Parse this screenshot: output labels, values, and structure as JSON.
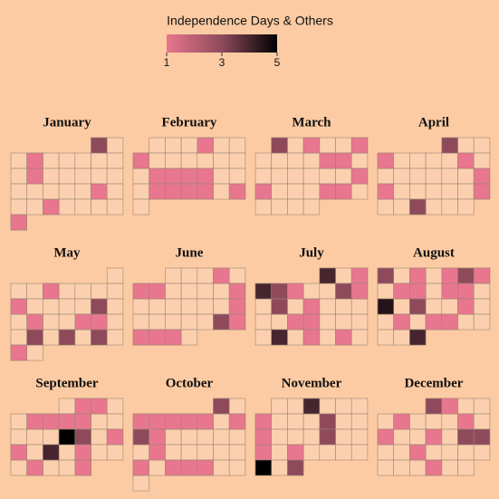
{
  "chart_data": {
    "type": "calendar_heatmap",
    "colorbar": {
      "title": "Independence Days & Others",
      "clim": [
        1,
        5
      ],
      "ticks": [
        1,
        3,
        5
      ],
      "colorscale": [
        "#e8768e",
        "#8e4a5b",
        "#000000"
      ]
    },
    "empty_color": "#fcd0ae",
    "months": [
      {
        "name": "January",
        "first_weekday": 5,
        "num_days": 31,
        "days": [
          1,
          4,
          11,
          22,
          26,
          31
        ],
        "values": [
          3,
          1,
          1,
          1,
          1,
          1
        ]
      },
      {
        "name": "February",
        "first_weekday": 1,
        "num_days": 28,
        "days": [
          4,
          7,
          15,
          16,
          17,
          18,
          22,
          23,
          24,
          25,
          27
        ],
        "values": [
          1,
          1,
          1,
          1,
          1,
          1,
          1,
          1,
          1,
          1,
          1
        ]
      },
      {
        "name": "March",
        "first_weekday": 1,
        "num_days": 31,
        "days": [
          1,
          3,
          6,
          11,
          12,
          20,
          21,
          25,
          26
        ],
        "values": [
          3,
          1,
          1,
          1,
          1,
          1,
          1,
          1,
          1
        ]
      },
      {
        "name": "April",
        "first_weekday": 4,
        "num_days": 30,
        "days": [
          1,
          4,
          9,
          17,
          18,
          24,
          27
        ],
        "values": [
          3,
          1,
          1,
          1,
          1,
          1,
          3
        ]
      },
      {
        "name": "May",
        "first_weekday": 6,
        "num_days": 31,
        "days": [
          4,
          9,
          14,
          17,
          20,
          21,
          24,
          26,
          28,
          30
        ],
        "values": [
          1,
          1,
          3,
          1,
          1,
          1,
          3,
          3,
          3,
          1
        ]
      },
      {
        "name": "June",
        "first_weekday": 2,
        "num_days": 30,
        "days": [
          4,
          6,
          7,
          12,
          19,
          25,
          26,
          27,
          28,
          29
        ],
        "values": [
          1,
          1,
          1,
          1,
          1,
          3,
          1,
          1,
          1,
          1
        ]
      },
      {
        "name": "July",
        "first_weekday": 4,
        "num_days": 31,
        "days": [
          1,
          3,
          4,
          5,
          6,
          9,
          10,
          12,
          14,
          20,
          21,
          26,
          28,
          30
        ],
        "values": [
          4,
          1,
          4,
          3,
          1,
          3,
          1,
          3,
          1,
          1,
          1,
          4,
          1,
          1
        ]
      },
      {
        "name": "August",
        "first_weekday": 0,
        "num_days": 31,
        "days": [
          1,
          3,
          5,
          6,
          7,
          9,
          10,
          12,
          13,
          15,
          17,
          20,
          23,
          25,
          26,
          31
        ],
        "values": [
          3,
          1,
          1,
          3,
          1,
          1,
          1,
          1,
          1,
          4.5,
          3,
          1,
          1,
          1,
          1,
          4
        ]
      },
      {
        "name": "September",
        "first_weekday": 3,
        "num_days": 30,
        "days": [
          2,
          3,
          6,
          7,
          8,
          9,
          15,
          16,
          18,
          19,
          21,
          23,
          27,
          30
        ],
        "values": [
          1,
          1,
          1,
          1,
          1,
          1,
          5,
          3,
          1,
          1,
          4,
          1,
          1,
          1
        ]
      },
      {
        "name": "October",
        "first_weekday": 5,
        "num_days": 31,
        "days": [
          1,
          3,
          4,
          5,
          6,
          7,
          9,
          10,
          11,
          18,
          24,
          26,
          27,
          28
        ],
        "values": [
          3,
          1,
          1,
          1,
          1,
          1,
          1,
          3,
          1,
          1,
          1,
          1,
          1,
          1
        ]
      },
      {
        "name": "November",
        "first_weekday": 1,
        "num_days": 30,
        "days": [
          3,
          7,
          11,
          14,
          18,
          21,
          23,
          28,
          30
        ],
        "values": [
          4,
          1,
          3,
          1,
          3,
          1,
          1,
          5,
          3
        ]
      },
      {
        "name": "December",
        "first_weekday": 3,
        "num_days": 31,
        "days": [
          1,
          2,
          6,
          10,
          12,
          15,
          17,
          18,
          21,
          29
        ],
        "values": [
          3,
          1,
          1,
          1,
          1,
          1,
          3,
          3,
          1,
          1
        ]
      }
    ]
  }
}
